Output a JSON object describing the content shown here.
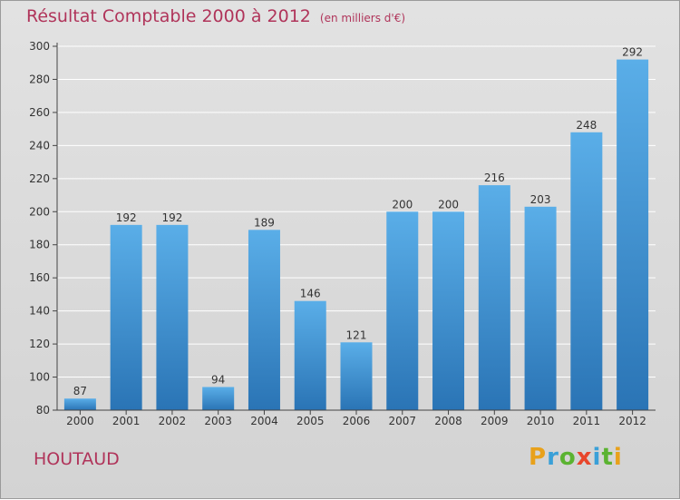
{
  "header": {
    "title": "Résultat Comptable 2000 à 2012",
    "unit": "(en milliers d'€)"
  },
  "footer": {
    "commune": "HOUTAUD",
    "logo": "Proxiti",
    "logo_colors": [
      "#e8a11b",
      "#3aa0d8",
      "#5bb331",
      "#e8462b",
      "#3aa0d8",
      "#5bb331",
      "#e8a11b"
    ]
  },
  "colors": {
    "title": "#b0345a",
    "bar_top": "#5aaee8",
    "bar_bottom": "#2a74b5",
    "grid": "#ffffff",
    "axis": "#444444"
  },
  "chart_data": {
    "type": "bar",
    "title": "Résultat Comptable 2000 à 2012",
    "xlabel": "",
    "ylabel": "",
    "categories": [
      "2000",
      "2001",
      "2002",
      "2003",
      "2004",
      "2005",
      "2006",
      "2007",
      "2008",
      "2009",
      "2010",
      "2011",
      "2012"
    ],
    "values": [
      87,
      192,
      192,
      94,
      189,
      146,
      121,
      200,
      200,
      216,
      203,
      248,
      292
    ],
    "ylim": [
      80,
      300
    ],
    "yticks": [
      80,
      100,
      120,
      140,
      160,
      180,
      200,
      220,
      240,
      260,
      280,
      300
    ],
    "grid": true,
    "data_labels": true
  }
}
